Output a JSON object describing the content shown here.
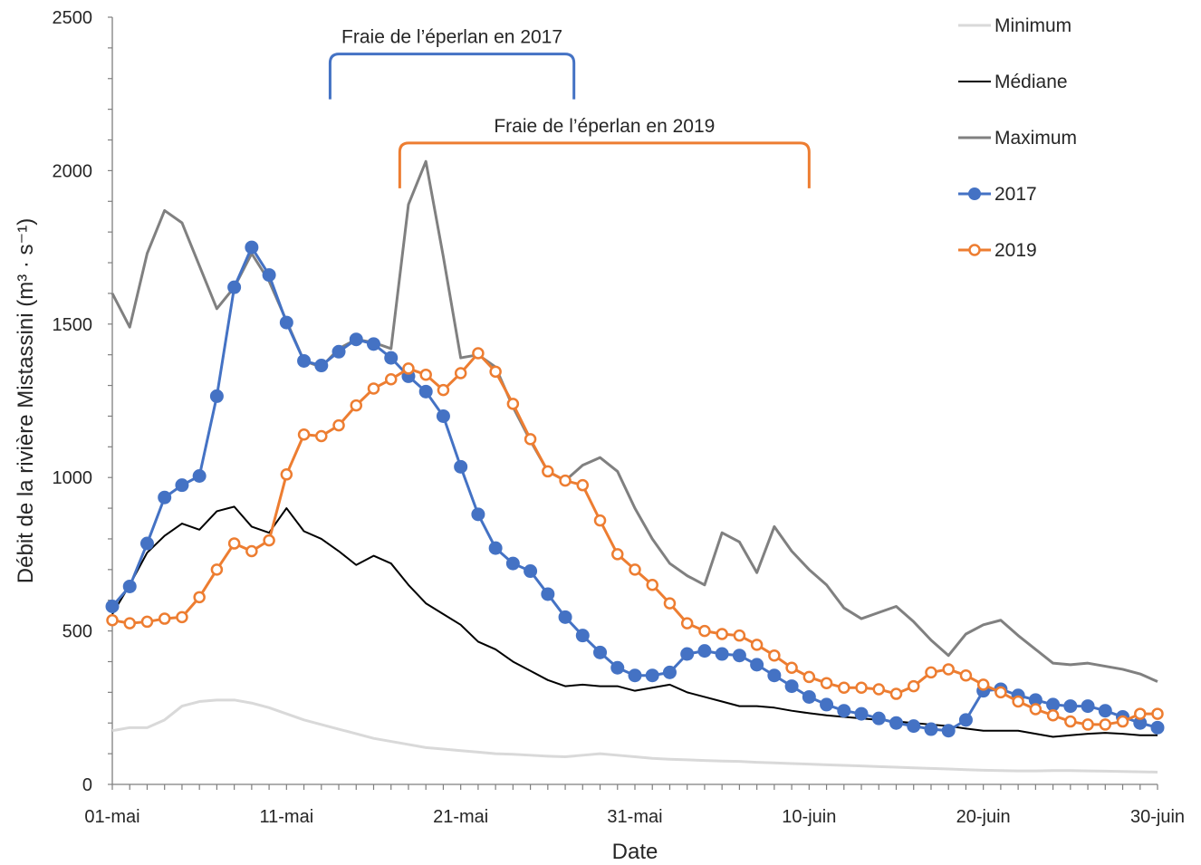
{
  "chart_data": {
    "type": "line",
    "xlabel": "Date",
    "ylabel": "Débit  de la rivière Mistassini (m³ · s⁻¹)",
    "ylim": [
      0,
      2500
    ],
    "yticks": [
      0,
      500,
      1000,
      1500,
      2000,
      2500
    ],
    "xlim": [
      0,
      60
    ],
    "xticks": [
      {
        "day": 0,
        "label": "01-mai"
      },
      {
        "day": 10,
        "label": "11-mai"
      },
      {
        "day": 20,
        "label": "21-mai"
      },
      {
        "day": 30,
        "label": "31-mai"
      },
      {
        "day": 40,
        "label": "10-juin"
      },
      {
        "day": 50,
        "label": "20-juin"
      },
      {
        "day": 60,
        "label": "30-juin"
      }
    ],
    "grid": false,
    "legend_position": "right",
    "annotations": [
      {
        "text": "Fraie de l’éperlan en 2017",
        "start_day": 12.5,
        "end_day": 26.5,
        "level": 2380,
        "color": "#4472C4"
      },
      {
        "text": "Fraie de l’éperlan en 2019",
        "start_day": 16.5,
        "end_day": 40,
        "level": 2090,
        "color": "#ED7D31"
      }
    ],
    "series": [
      {
        "name": "Minimum",
        "color": "#D9D9D9",
        "marker": "none",
        "values": [
          175,
          185,
          185,
          210,
          255,
          270,
          275,
          275,
          265,
          250,
          230,
          210,
          195,
          180,
          165,
          150,
          140,
          130,
          120,
          115,
          110,
          105,
          100,
          98,
          95,
          92,
          90,
          95,
          100,
          95,
          90,
          85,
          82,
          80,
          78,
          76,
          75,
          72,
          70,
          68,
          66,
          64,
          62,
          60,
          58,
          56,
          54,
          52,
          50,
          48,
          46,
          45,
          44,
          44,
          45,
          45,
          44,
          43,
          42,
          41,
          40
        ]
      },
      {
        "name": "Médiane",
        "color": "#000000",
        "marker": "none",
        "values": [
          555,
          650,
          755,
          810,
          850,
          830,
          890,
          905,
          840,
          820,
          900,
          825,
          800,
          760,
          715,
          745,
          720,
          650,
          590,
          555,
          520,
          465,
          440,
          400,
          370,
          340,
          320,
          325,
          320,
          320,
          305,
          315,
          325,
          300,
          285,
          270,
          255,
          255,
          250,
          240,
          232,
          225,
          220,
          215,
          210,
          205,
          200,
          195,
          190,
          182,
          175,
          175,
          175,
          165,
          155,
          160,
          165,
          168,
          165,
          160,
          160
        ]
      },
      {
        "name": "Maximum",
        "color": "#808080",
        "marker": "none",
        "values": [
          1600,
          1490,
          1730,
          1870,
          1830,
          1690,
          1550,
          1620,
          1730,
          1640,
          1510,
          1380,
          1360,
          1420,
          1450,
          1440,
          1420,
          1890,
          2030,
          1720,
          1390,
          1400,
          1360,
          1230,
          1120,
          1020,
          990,
          1040,
          1065,
          1020,
          900,
          800,
          720,
          680,
          650,
          820,
          790,
          690,
          840,
          760,
          700,
          650,
          575,
          540,
          560,
          580,
          530,
          470,
          420,
          490,
          520,
          535,
          485,
          440,
          395,
          390,
          395,
          385,
          375,
          360,
          335
        ]
      },
      {
        "name": "2017",
        "color": "#4472C4",
        "marker": "filled",
        "values": [
          580,
          645,
          785,
          935,
          975,
          1005,
          1265,
          1620,
          1750,
          1660,
          1505,
          1380,
          1365,
          1410,
          1450,
          1435,
          1390,
          1330,
          1280,
          1200,
          1035,
          880,
          770,
          720,
          695,
          620,
          545,
          485,
          430,
          380,
          355,
          355,
          365,
          425,
          435,
          425,
          420,
          390,
          355,
          320,
          285,
          260,
          240,
          230,
          215,
          200,
          190,
          180,
          175,
          210,
          305,
          310,
          290,
          275,
          260,
          255,
          255,
          240,
          220,
          200,
          185
        ]
      },
      {
        "name": "2019",
        "color": "#ED7D31",
        "marker": "hollow",
        "values": [
          535,
          525,
          530,
          540,
          545,
          610,
          700,
          785,
          760,
          795,
          1010,
          1140,
          1135,
          1170,
          1235,
          1290,
          1320,
          1355,
          1335,
          1285,
          1340,
          1405,
          1345,
          1240,
          1125,
          1020,
          990,
          975,
          860,
          750,
          700,
          650,
          590,
          525,
          500,
          490,
          485,
          455,
          420,
          380,
          350,
          330,
          315,
          315,
          310,
          295,
          320,
          365,
          375,
          355,
          325,
          300,
          270,
          245,
          225,
          205,
          195,
          195,
          205,
          230,
          230
        ]
      }
    ]
  }
}
